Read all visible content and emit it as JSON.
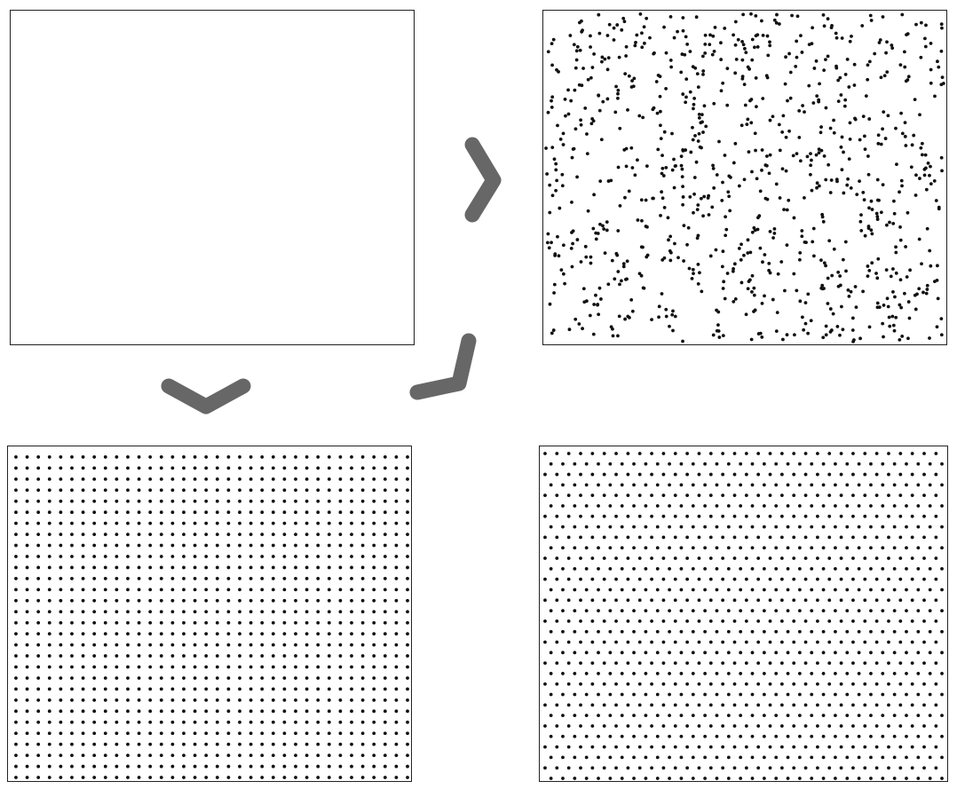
{
  "diagram": {
    "panels": [
      {
        "id": "empty",
        "pattern": "empty"
      },
      {
        "id": "random",
        "pattern": "random",
        "point_count": 900
      },
      {
        "id": "square",
        "pattern": "square-grid",
        "rows": 30,
        "cols": 36
      },
      {
        "id": "hex",
        "pattern": "hexagonal-grid",
        "rows": 32,
        "cols": 34
      }
    ],
    "arrows": [
      {
        "id": "empty-to-random",
        "direction": "right"
      },
      {
        "id": "empty-to-square",
        "direction": "down"
      },
      {
        "id": "random-to-square",
        "direction": "down-left"
      }
    ],
    "colors": {
      "dot": "#111111",
      "arrow": "#676767",
      "border": "#222222",
      "background": "#ffffff"
    }
  }
}
